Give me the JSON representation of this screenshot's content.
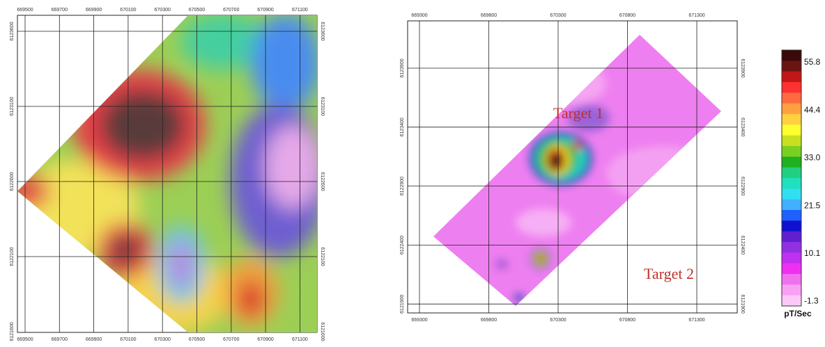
{
  "left_map": {
    "x_ticks": [
      "669500",
      "669700",
      "669900",
      "670100",
      "670300",
      "670500",
      "670700",
      "670900",
      "671100"
    ],
    "y_ticks": [
      "6123600",
      "6123100",
      "6122600",
      "6122100",
      "6121600"
    ]
  },
  "right_map": {
    "x_ticks": [
      "669300",
      "669800",
      "670300",
      "670800",
      "671300"
    ],
    "y_ticks": [
      "6123900",
      "6123400",
      "6122900",
      "6122400",
      "6121900"
    ],
    "target_1": "Target 1",
    "target_2": "Target 2"
  },
  "colorbar": {
    "labels": [
      "55.8",
      "44.4",
      "33.0",
      "21.5",
      "10.1",
      "-1.3"
    ],
    "unit": "pT/Sec"
  }
}
